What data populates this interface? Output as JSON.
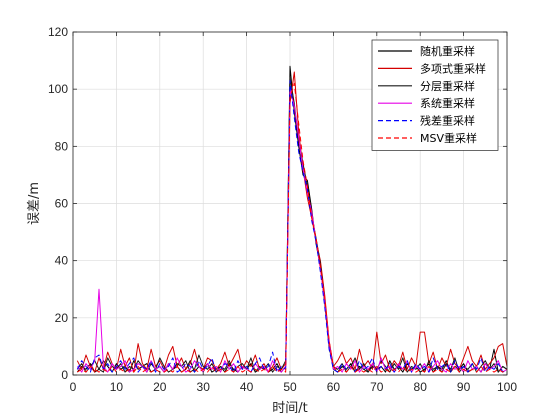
{
  "chart_data": {
    "type": "line",
    "xlabel": "时间/t",
    "ylabel": "误差/m",
    "xlim": [
      0,
      100
    ],
    "ylim": [
      0,
      120
    ],
    "xticks": [
      0,
      10,
      20,
      30,
      40,
      50,
      60,
      70,
      80,
      90,
      100
    ],
    "yticks": [
      0,
      20,
      40,
      60,
      80,
      100,
      120
    ],
    "grid": true,
    "legend_position": "top-right",
    "series": [
      {
        "name": "随机重采样",
        "color": "#000000",
        "dash": "solid",
        "x": [
          1,
          2,
          3,
          4,
          5,
          6,
          7,
          8,
          9,
          10,
          11,
          12,
          13,
          14,
          15,
          16,
          17,
          18,
          19,
          20,
          21,
          22,
          23,
          24,
          25,
          26,
          27,
          28,
          29,
          30,
          31,
          32,
          33,
          34,
          35,
          36,
          37,
          38,
          39,
          40,
          41,
          42,
          43,
          44,
          45,
          46,
          47,
          48,
          49,
          50,
          51,
          52,
          53,
          54,
          55,
          56,
          57,
          58,
          59,
          60,
          61,
          62,
          63,
          64,
          65,
          66,
          67,
          68,
          69,
          70,
          71,
          72,
          73,
          74,
          75,
          76,
          77,
          78,
          79,
          80,
          81,
          82,
          83,
          84,
          85,
          86,
          87,
          88,
          89,
          90,
          91,
          92,
          93,
          94,
          95,
          96,
          97,
          98,
          99,
          100
        ],
        "y": [
          1,
          3,
          2,
          4,
          1,
          2,
          5,
          3,
          1,
          4,
          2,
          3,
          1,
          5,
          2,
          3,
          4,
          1,
          2,
          3,
          1,
          4,
          2,
          3,
          1,
          2,
          5,
          1,
          3,
          2,
          4,
          1,
          2,
          3,
          1,
          4,
          2,
          1,
          3,
          2,
          4,
          1,
          2,
          3,
          1,
          2,
          4,
          1,
          3,
          108,
          92,
          80,
          70,
          68,
          58,
          46,
          38,
          25,
          10,
          2,
          1,
          3,
          2,
          4,
          1,
          3,
          2,
          1,
          4,
          2,
          3,
          1,
          5,
          2,
          3,
          1,
          4,
          2,
          3,
          1,
          2,
          4,
          1,
          3,
          2,
          5,
          1,
          3,
          2,
          4,
          1,
          2,
          3,
          1,
          4,
          2,
          9,
          1,
          3,
          2
        ]
      },
      {
        "name": "多项式重采样",
        "color": "#d40000",
        "dash": "solid",
        "x": [
          1,
          2,
          3,
          4,
          5,
          6,
          7,
          8,
          9,
          10,
          11,
          12,
          13,
          14,
          15,
          16,
          17,
          18,
          19,
          20,
          21,
          22,
          23,
          24,
          25,
          26,
          27,
          28,
          29,
          30,
          31,
          32,
          33,
          34,
          35,
          36,
          37,
          38,
          39,
          40,
          41,
          42,
          43,
          44,
          45,
          46,
          47,
          48,
          49,
          50,
          51,
          52,
          53,
          54,
          55,
          56,
          57,
          58,
          59,
          60,
          61,
          62,
          63,
          64,
          65,
          66,
          67,
          68,
          69,
          70,
          71,
          72,
          73,
          74,
          75,
          76,
          77,
          78,
          79,
          80,
          81,
          82,
          83,
          84,
          85,
          86,
          87,
          88,
          89,
          90,
          91,
          92,
          93,
          94,
          95,
          96,
          97,
          98,
          99,
          100
        ],
        "y": [
          5,
          2,
          7,
          3,
          1,
          6,
          2,
          8,
          4,
          2,
          9,
          3,
          6,
          1,
          11,
          4,
          2,
          9,
          3,
          5,
          2,
          7,
          10,
          3,
          6,
          2,
          4,
          9,
          3,
          2,
          6,
          5,
          2,
          4,
          8,
          3,
          6,
          9,
          2,
          5,
          3,
          7,
          2,
          4,
          1,
          3,
          6,
          2,
          4,
          95,
          106,
          85,
          72,
          62,
          55,
          47,
          40,
          28,
          12,
          3,
          5,
          8,
          4,
          6,
          2,
          9,
          3,
          5,
          2,
          15,
          4,
          7,
          2,
          5,
          3,
          8,
          2,
          6,
          3,
          15,
          15,
          4,
          8,
          2,
          6,
          3,
          9,
          4,
          2,
          6,
          10,
          5,
          3,
          7,
          2,
          4,
          6,
          10,
          11,
          3
        ]
      },
      {
        "name": "分层重采样",
        "color": "#1a1a1a",
        "dash": "solid",
        "x": [
          1,
          2,
          3,
          4,
          5,
          6,
          7,
          8,
          9,
          10,
          11,
          12,
          13,
          14,
          15,
          16,
          17,
          18,
          19,
          20,
          21,
          22,
          23,
          24,
          25,
          26,
          27,
          28,
          29,
          30,
          31,
          32,
          33,
          34,
          35,
          36,
          37,
          38,
          39,
          40,
          41,
          42,
          43,
          44,
          45,
          46,
          47,
          48,
          49,
          50,
          51,
          52,
          53,
          54,
          55,
          56,
          57,
          58,
          59,
          60,
          61,
          62,
          63,
          64,
          65,
          66,
          67,
          68,
          69,
          70,
          71,
          72,
          73,
          74,
          75,
          76,
          77,
          78,
          79,
          80,
          81,
          82,
          83,
          84,
          85,
          86,
          87,
          88,
          89,
          90,
          91,
          92,
          93,
          94,
          95,
          96,
          97,
          98,
          99,
          100
        ],
        "y": [
          2,
          4,
          1,
          3,
          5,
          2,
          1,
          6,
          3,
          2,
          4,
          1,
          3,
          2,
          5,
          3,
          1,
          4,
          2,
          6,
          3,
          1,
          2,
          4,
          3,
          5,
          1,
          2,
          7,
          3,
          2,
          4,
          1,
          3,
          2,
          5,
          1,
          3,
          4,
          2,
          6,
          1,
          3,
          2,
          4,
          1,
          3,
          2,
          5,
          104,
          95,
          82,
          74,
          66,
          56,
          48,
          39,
          26,
          11,
          3,
          2,
          4,
          1,
          3,
          6,
          2,
          4,
          1,
          3,
          2,
          5,
          3,
          1,
          4,
          2,
          6,
          1,
          3,
          2,
          4,
          1,
          5,
          2,
          3,
          1,
          4,
          2,
          6,
          1,
          3,
          2,
          4,
          1,
          3,
          5,
          2,
          4,
          1,
          3,
          2
        ]
      },
      {
        "name": "系统重采样",
        "color": "#e600e6",
        "dash": "solid",
        "x": [
          1,
          2,
          3,
          4,
          5,
          6,
          7,
          8,
          9,
          10,
          11,
          12,
          13,
          14,
          15,
          16,
          17,
          18,
          19,
          20,
          21,
          22,
          23,
          24,
          25,
          26,
          27,
          28,
          29,
          30,
          31,
          32,
          33,
          34,
          35,
          36,
          37,
          38,
          39,
          40,
          41,
          42,
          43,
          44,
          45,
          46,
          47,
          48,
          49,
          50,
          51,
          52,
          53,
          54,
          55,
          56,
          57,
          58,
          59,
          60,
          61,
          62,
          63,
          64,
          65,
          66,
          67,
          68,
          69,
          70,
          71,
          72,
          73,
          74,
          75,
          76,
          77,
          78,
          79,
          80,
          81,
          82,
          83,
          84,
          85,
          86,
          87,
          88,
          89,
          90,
          91,
          92,
          93,
          94,
          95,
          96,
          97,
          98,
          99,
          100
        ],
        "y": [
          3,
          1,
          4,
          2,
          5,
          30,
          3,
          1,
          4,
          2,
          3,
          5,
          1,
          2,
          4,
          3,
          1,
          5,
          2,
          3,
          1,
          4,
          2,
          6,
          3,
          1,
          2,
          5,
          3,
          1,
          4,
          2,
          3,
          1,
          5,
          2,
          4,
          1,
          3,
          2,
          1,
          4,
          2,
          3,
          1,
          5,
          2,
          1,
          3,
          100,
          94,
          83,
          72,
          64,
          57,
          47,
          37,
          26,
          11,
          2,
          3,
          1,
          4,
          2,
          5,
          1,
          3,
          2,
          4,
          1,
          6,
          2,
          3,
          1,
          4,
          2,
          5,
          1,
          3,
          2,
          4,
          1,
          3,
          5,
          2,
          1,
          4,
          2,
          3,
          1,
          5,
          2,
          3,
          1,
          4,
          2,
          3,
          5,
          1,
          2
        ]
      },
      {
        "name": "残差重采样",
        "color": "#0000ff",
        "dash": "dashed",
        "x": [
          1,
          2,
          3,
          4,
          5,
          6,
          7,
          8,
          9,
          10,
          11,
          12,
          13,
          14,
          15,
          16,
          17,
          18,
          19,
          20,
          21,
          22,
          23,
          24,
          25,
          26,
          27,
          28,
          29,
          30,
          31,
          32,
          33,
          34,
          35,
          36,
          37,
          38,
          39,
          40,
          41,
          42,
          43,
          44,
          45,
          46,
          47,
          48,
          49,
          50,
          51,
          52,
          53,
          54,
          55,
          56,
          57,
          58,
          59,
          60,
          61,
          62,
          63,
          64,
          65,
          66,
          67,
          68,
          69,
          70,
          71,
          72,
          73,
          74,
          75,
          76,
          77,
          78,
          79,
          80,
          81,
          82,
          83,
          84,
          85,
          86,
          87,
          88,
          89,
          90,
          91,
          92,
          93,
          94,
          95,
          96,
          97,
          98,
          99,
          100
        ],
        "y": [
          2,
          5,
          3,
          1,
          6,
          7,
          2,
          4,
          1,
          3,
          5,
          2,
          4,
          6,
          1,
          3,
          2,
          5,
          1,
          4,
          2,
          3,
          6,
          1,
          2,
          4,
          3,
          1,
          5,
          2,
          3,
          6,
          1,
          2,
          4,
          3,
          1,
          5,
          2,
          3,
          1,
          4,
          6,
          2,
          3,
          8,
          1,
          3,
          2,
          103,
          90,
          78,
          71,
          65,
          54,
          47,
          36,
          24,
          9,
          2,
          1,
          4,
          2,
          3,
          1,
          5,
          2,
          3,
          6,
          1,
          3,
          2,
          4,
          1,
          3,
          2,
          5,
          1,
          4,
          2,
          3,
          1,
          6,
          2,
          3,
          4,
          1,
          5,
          2,
          3,
          1,
          4,
          2,
          6,
          1,
          3,
          2,
          4,
          1,
          2
        ]
      },
      {
        "name": "MSV重采样",
        "color": "#ff0000",
        "dash": "dashed",
        "x": [
          1,
          2,
          3,
          4,
          5,
          6,
          7,
          8,
          9,
          10,
          11,
          12,
          13,
          14,
          15,
          16,
          17,
          18,
          19,
          20,
          21,
          22,
          23,
          24,
          25,
          26,
          27,
          28,
          29,
          30,
          31,
          32,
          33,
          34,
          35,
          36,
          37,
          38,
          39,
          40,
          41,
          42,
          43,
          44,
          45,
          46,
          47,
          48,
          49,
          50,
          51,
          52,
          53,
          54,
          55,
          56,
          57,
          58,
          59,
          60,
          61,
          62,
          63,
          64,
          65,
          66,
          67,
          68,
          69,
          70,
          71,
          72,
          73,
          74,
          75,
          76,
          77,
          78,
          79,
          80,
          81,
          82,
          83,
          84,
          85,
          86,
          87,
          88,
          89,
          90,
          91,
          92,
          93,
          94,
          95,
          96,
          97,
          98,
          99,
          100
        ],
        "y": [
          1,
          2,
          1,
          3,
          2,
          1,
          2,
          1,
          3,
          1,
          2,
          1,
          2,
          1,
          3,
          1,
          2,
          1,
          2,
          1,
          1,
          2,
          1,
          3,
          1,
          2,
          1,
          2,
          1,
          2,
          1,
          3,
          1,
          2,
          1,
          2,
          1,
          3,
          1,
          2,
          1,
          2,
          1,
          2,
          1,
          3,
          1,
          2,
          1,
          97,
          102,
          88,
          75,
          66,
          55,
          48,
          38,
          27,
          12,
          3,
          1,
          2,
          1,
          3,
          1,
          2,
          1,
          2,
          1,
          3,
          1,
          2,
          1,
          2,
          1,
          3,
          1,
          2,
          1,
          2,
          1,
          3,
          1,
          2,
          1,
          2,
          1,
          3,
          1,
          2,
          1,
          2,
          1,
          3,
          1,
          2,
          1,
          2,
          1,
          2
        ]
      }
    ]
  }
}
